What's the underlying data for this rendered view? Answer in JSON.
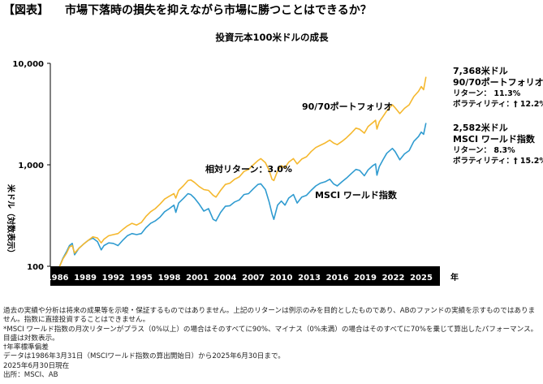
{
  "header": {
    "tag": "【図表】",
    "title": "市場下落時の損失を抑えながら市場に勝つことはできるか？"
  },
  "chart_data": {
    "type": "line",
    "title": "投資元本100米ドルの成長",
    "ylabel": "米ドル（対数表示）",
    "xlabel": "年",
    "yscale": "log",
    "ylim": [
      100,
      10000
    ],
    "yticks": [
      100,
      1000,
      10000
    ],
    "ytick_labels": [
      "100",
      "1,000",
      "10,000"
    ],
    "xlim": [
      1985.25,
      2027.0
    ],
    "xticks": [
      1986,
      1989,
      1992,
      1995,
      1998,
      2001,
      2004,
      2007,
      2010,
      2013,
      2016,
      2019,
      2022,
      2025
    ],
    "grid": false,
    "legend": "none (series labelled inline)",
    "series": [
      {
        "name": "90/70ポートフォリオ",
        "color": "#F5B82E",
        "points": [
          [
            1986.25,
            100
          ],
          [
            1986.6,
            118
          ],
          [
            1987.0,
            135
          ],
          [
            1987.3,
            155
          ],
          [
            1987.6,
            160
          ],
          [
            1987.85,
            135
          ],
          [
            1988.3,
            150
          ],
          [
            1988.8,
            165
          ],
          [
            1989.3,
            180
          ],
          [
            1989.8,
            195
          ],
          [
            1990.3,
            190
          ],
          [
            1990.7,
            170
          ],
          [
            1991.0,
            185
          ],
          [
            1991.5,
            200
          ],
          [
            1992.0,
            205
          ],
          [
            1992.5,
            210
          ],
          [
            1993.0,
            230
          ],
          [
            1993.5,
            250
          ],
          [
            1994.0,
            265
          ],
          [
            1994.5,
            255
          ],
          [
            1995.0,
            270
          ],
          [
            1995.5,
            310
          ],
          [
            1996.0,
            345
          ],
          [
            1996.5,
            370
          ],
          [
            1997.0,
            410
          ],
          [
            1997.5,
            460
          ],
          [
            1998.0,
            490
          ],
          [
            1998.5,
            520
          ],
          [
            1998.7,
            470
          ],
          [
            1999.0,
            560
          ],
          [
            1999.5,
            620
          ],
          [
            2000.0,
            700
          ],
          [
            2000.3,
            710
          ],
          [
            2000.7,
            670
          ],
          [
            2001.2,
            610
          ],
          [
            2001.7,
            570
          ],
          [
            2002.2,
            560
          ],
          [
            2002.7,
            500
          ],
          [
            2003.0,
            480
          ],
          [
            2003.5,
            560
          ],
          [
            2004.0,
            640
          ],
          [
            2004.5,
            660
          ],
          [
            2005.0,
            720
          ],
          [
            2005.5,
            760
          ],
          [
            2006.0,
            860
          ],
          [
            2006.5,
            900
          ],
          [
            2007.0,
            1000
          ],
          [
            2007.5,
            1100
          ],
          [
            2007.8,
            1150
          ],
          [
            2008.3,
            1050
          ],
          [
            2008.7,
            880
          ],
          [
            2009.0,
            720
          ],
          [
            2009.2,
            700
          ],
          [
            2009.6,
            870
          ],
          [
            2010.0,
            980
          ],
          [
            2010.4,
            940
          ],
          [
            2010.8,
            1060
          ],
          [
            2011.3,
            1150
          ],
          [
            2011.7,
            1020
          ],
          [
            2012.2,
            1140
          ],
          [
            2012.7,
            1200
          ],
          [
            2013.2,
            1350
          ],
          [
            2013.7,
            1480
          ],
          [
            2014.2,
            1560
          ],
          [
            2014.7,
            1640
          ],
          [
            2015.2,
            1750
          ],
          [
            2015.6,
            1640
          ],
          [
            2016.0,
            1580
          ],
          [
            2016.5,
            1700
          ],
          [
            2017.0,
            1850
          ],
          [
            2017.5,
            2050
          ],
          [
            2018.0,
            2300
          ],
          [
            2018.4,
            2240
          ],
          [
            2018.9,
            2050
          ],
          [
            2019.3,
            2380
          ],
          [
            2019.8,
            2600
          ],
          [
            2020.1,
            2750
          ],
          [
            2020.25,
            2250
          ],
          [
            2020.5,
            2650
          ],
          [
            2020.9,
            3000
          ],
          [
            2021.3,
            3400
          ],
          [
            2021.9,
            3900
          ],
          [
            2022.2,
            3650
          ],
          [
            2022.7,
            3200
          ],
          [
            2023.2,
            3600
          ],
          [
            2023.7,
            3900
          ],
          [
            2024.2,
            4700
          ],
          [
            2024.7,
            5300
          ],
          [
            2025.0,
            5900
          ],
          [
            2025.25,
            5500
          ],
          [
            2025.5,
            7368
          ]
        ]
      },
      {
        "name": "MSCI ワールド指数",
        "color": "#2F9BD0",
        "points": [
          [
            1986.25,
            100
          ],
          [
            1986.6,
            120
          ],
          [
            1987.0,
            140
          ],
          [
            1987.3,
            160
          ],
          [
            1987.6,
            168
          ],
          [
            1987.85,
            130
          ],
          [
            1988.3,
            150
          ],
          [
            1988.8,
            165
          ],
          [
            1989.3,
            180
          ],
          [
            1989.8,
            190
          ],
          [
            1990.3,
            175
          ],
          [
            1990.7,
            145
          ],
          [
            1991.0,
            160
          ],
          [
            1991.5,
            170
          ],
          [
            1992.0,
            168
          ],
          [
            1992.5,
            160
          ],
          [
            1993.0,
            180
          ],
          [
            1993.5,
            200
          ],
          [
            1994.0,
            210
          ],
          [
            1994.5,
            205
          ],
          [
            1995.0,
            210
          ],
          [
            1995.5,
            240
          ],
          [
            1996.0,
            265
          ],
          [
            1996.5,
            280
          ],
          [
            1997.0,
            305
          ],
          [
            1997.5,
            345
          ],
          [
            1998.0,
            370
          ],
          [
            1998.5,
            400
          ],
          [
            1998.7,
            340
          ],
          [
            1999.0,
            420
          ],
          [
            1999.5,
            465
          ],
          [
            2000.0,
            520
          ],
          [
            2000.3,
            510
          ],
          [
            2000.7,
            470
          ],
          [
            2001.2,
            410
          ],
          [
            2001.7,
            350
          ],
          [
            2002.2,
            370
          ],
          [
            2002.7,
            290
          ],
          [
            2003.0,
            280
          ],
          [
            2003.5,
            340
          ],
          [
            2004.0,
            390
          ],
          [
            2004.5,
            395
          ],
          [
            2005.0,
            430
          ],
          [
            2005.5,
            450
          ],
          [
            2006.0,
            510
          ],
          [
            2006.5,
            520
          ],
          [
            2007.0,
            580
          ],
          [
            2007.5,
            640
          ],
          [
            2007.8,
            650
          ],
          [
            2008.3,
            570
          ],
          [
            2008.7,
            430
          ],
          [
            2009.0,
            330
          ],
          [
            2009.2,
            290
          ],
          [
            2009.6,
            400
          ],
          [
            2010.0,
            440
          ],
          [
            2010.4,
            400
          ],
          [
            2010.8,
            470
          ],
          [
            2011.3,
            510
          ],
          [
            2011.7,
            420
          ],
          [
            2012.2,
            480
          ],
          [
            2012.7,
            500
          ],
          [
            2013.2,
            560
          ],
          [
            2013.7,
            620
          ],
          [
            2014.2,
            660
          ],
          [
            2014.7,
            680
          ],
          [
            2015.2,
            720
          ],
          [
            2015.6,
            650
          ],
          [
            2016.0,
            620
          ],
          [
            2016.5,
            680
          ],
          [
            2017.0,
            740
          ],
          [
            2017.5,
            820
          ],
          [
            2018.0,
            900
          ],
          [
            2018.4,
            880
          ],
          [
            2018.9,
            780
          ],
          [
            2019.3,
            890
          ],
          [
            2019.8,
            980
          ],
          [
            2020.1,
            1020
          ],
          [
            2020.25,
            790
          ],
          [
            2020.5,
            960
          ],
          [
            2020.9,
            1120
          ],
          [
            2021.3,
            1300
          ],
          [
            2021.9,
            1450
          ],
          [
            2022.2,
            1350
          ],
          [
            2022.7,
            1120
          ],
          [
            2023.2,
            1280
          ],
          [
            2023.7,
            1380
          ],
          [
            2024.2,
            1700
          ],
          [
            2024.7,
            1900
          ],
          [
            2025.0,
            2100
          ],
          [
            2025.25,
            2000
          ],
          [
            2025.5,
            2582
          ]
        ]
      }
    ],
    "annotations": {
      "portfolio_label": "90/70ポートフォリオ",
      "relative_return": "相対リターン：3.0%",
      "msci_label": "MSCI ワールド指数",
      "portfolio_end": {
        "value": "7,368米ドル",
        "name": "90/70ポートフォリオ*",
        "return": "リターン： 11.3%",
        "volatility": "ボラティリティ：† 12.2%"
      },
      "msci_end": {
        "value": "2,582米ドル",
        "name": "MSCI ワールド指数",
        "return": "リターン： 8.3%",
        "volatility": "ボラティリティ：† 15.2%"
      }
    }
  },
  "notes": [
    "過去の実績や分析は将来の成果等を示唆・保証するものではありません。上記のリターンは例示のみを目的としたものであり、ABのファンドの実績を示すものではありません。指数に直接投資することはできません。",
    "*MSCI ワールド指数の月次リターンがプラス（0%以上）の場合はそのすべてに90%、マイナス（0%未満）の場合はそのすべてに70%を乗じて算出したパフォーマンス。目盛は対数表示。",
    "†年率標準偏差",
    "データは1986年3月31日（MSCIワールド指数の算出開始日）から2025年6月30日まで。",
    "2025年6月30日現在",
    "出所：MSCI、AB"
  ]
}
